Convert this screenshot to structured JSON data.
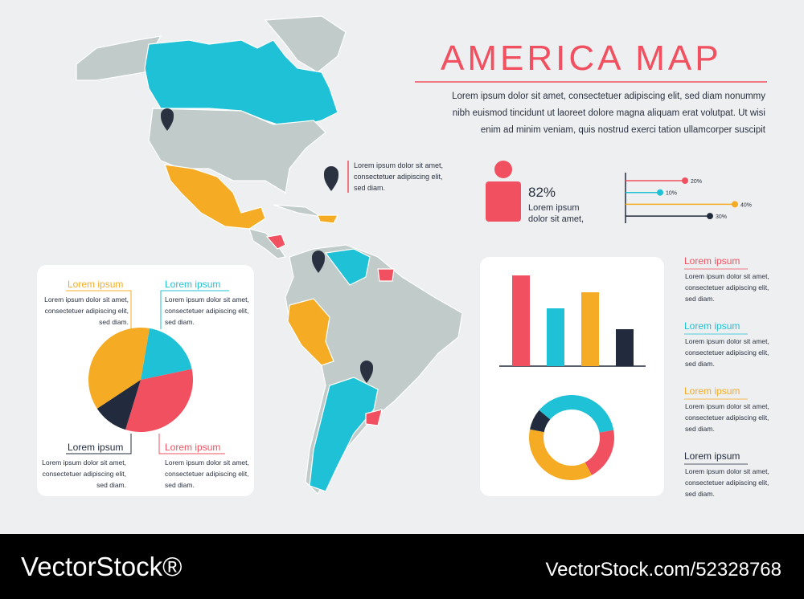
{
  "header": {
    "title": "AMERICA MAP",
    "intro": [
      "Lorem ipsum dolor sit amet, consectetuer adipiscing elit, sed diam nonummy",
      "nibh euismod tincidunt ut laoreet dolore magna aliquam erat volutpat. Ut wisi",
      "enim ad minim veniam, quis nostrud exerci tation ullamcorper suscipit"
    ]
  },
  "pin_note": [
    "Lorem ipsum dolor sit amet,",
    "consectetuer adipiscing elit,",
    "sed diam."
  ],
  "person_stat": {
    "value": 82,
    "label": "82%",
    "color": "#f0505f",
    "text": [
      "Lorem ipsum",
      "dolor sit amet,"
    ]
  },
  "progress": [
    {
      "value": 20,
      "label": "20%",
      "color": "#f0505f"
    },
    {
      "value": 10,
      "label": "10%",
      "color": "#1fc1d6"
    },
    {
      "value": 40,
      "label": "40%",
      "color": "#f5ac24"
    },
    {
      "value": 30,
      "label": "30%",
      "color": "#222b3d"
    }
  ],
  "pie": {
    "slices": [
      {
        "value": 19,
        "color": "#1fc1d6"
      },
      {
        "value": 33,
        "color": "#f0505f"
      },
      {
        "value": 11,
        "color": "#222b3d"
      },
      {
        "value": 37,
        "color": "#f5ac24"
      }
    ],
    "labels": [
      {
        "heading": "Lorem ipsum",
        "color": "#f5ac24",
        "lines": [
          "Lorem ipsum dolor sit amet,",
          "consectetuer adipiscing elit,",
          "sed diam."
        ]
      },
      {
        "heading": "Lorem ipsum",
        "color": "#1fc1d6",
        "lines": [
          "Lorem ipsum dolor sit amet,",
          "consectetuer adipiscing elit,",
          "sed diam."
        ]
      },
      {
        "heading": "Lorem ipsum",
        "color": "#222b3d",
        "lines": [
          "Lorem ipsum dolor sit amet,",
          "consectetuer adipiscing elit,",
          "sed diam."
        ]
      },
      {
        "heading": "Lorem ipsum",
        "color": "#f0505f",
        "lines": [
          "Lorem ipsum dolor sit amet,",
          "consectetuer adipiscing elit,",
          "sed diam."
        ]
      }
    ]
  },
  "bars": [
    {
      "value": 113,
      "color": "#f0505f"
    },
    {
      "value": 72,
      "color": "#1fc1d6"
    },
    {
      "value": 92,
      "color": "#f5ac24"
    },
    {
      "value": 46,
      "color": "#222b3d"
    }
  ],
  "donut": [
    {
      "value": 36,
      "color": "#1fc1d6"
    },
    {
      "value": 20,
      "color": "#f0505f"
    },
    {
      "value": 36,
      "color": "#f5ac24"
    },
    {
      "value": 8,
      "color": "#222b3d"
    }
  ],
  "legend": [
    {
      "heading": "Lorem ipsum",
      "color": "#f0505f",
      "lines": [
        "Lorem ipsum dolor sit amet,",
        "consectetuer adipiscing elit,",
        "sed diam."
      ]
    },
    {
      "heading": "Lorem ipsum",
      "color": "#1fc1d6",
      "lines": [
        "Lorem ipsum dolor sit amet,",
        "consectetuer adipiscing elit,",
        "sed diam."
      ]
    },
    {
      "heading": "Lorem ipsum",
      "color": "#f5ac24",
      "lines": [
        "Lorem ipsum dolor sit amet,",
        "consectetuer adipiscing elit,",
        "sed diam."
      ]
    },
    {
      "heading": "Lorem ipsum",
      "color": "#222b3d",
      "lines": [
        "Lorem ipsum dolor sit amet,",
        "consectetuer adipiscing elit,",
        "sed diam."
      ]
    }
  ],
  "watermark": {
    "brand": "VectorStock®",
    "id": "VectorStock.com/52328768"
  }
}
